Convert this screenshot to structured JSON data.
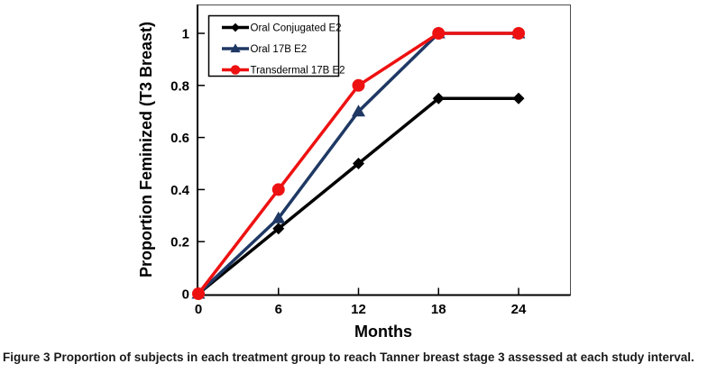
{
  "figure": {
    "caption_label": "Figure 3",
    "caption_text": "Proportion of subjects in each treatment group to reach Tanner breast stage 3 assessed at each study interval."
  },
  "chart_data": {
    "type": "line",
    "title": "",
    "xlabel": "Months",
    "ylabel": "Proportion Feminized (T3 Breast)",
    "x": [
      0,
      6,
      12,
      18,
      24
    ],
    "xtick_labels": [
      "0",
      "6",
      "12",
      "18",
      "24"
    ],
    "ytick_values": [
      0,
      0.2,
      0.4,
      0.6,
      0.8,
      1
    ],
    "ytick_labels": [
      "0",
      "0.2",
      "0.4",
      "0.6",
      "0.8",
      "1"
    ],
    "xlim": [
      0,
      28
    ],
    "ylim": [
      0,
      1.1
    ],
    "grid": false,
    "legend_position": "top-left-inside",
    "frame_color": "#4d4d4d",
    "axis_color": "#000000",
    "series": [
      {
        "name": "Oral Conjugated E2",
        "color": "#000000",
        "marker": "diamond",
        "values": [
          0,
          0.25,
          0.5,
          0.75,
          0.75
        ]
      },
      {
        "name": "Oral 17B E2",
        "color": "#1f3864",
        "marker": "triangle",
        "values": [
          0,
          0.29,
          0.7,
          1,
          1
        ]
      },
      {
        "name": "Transdermal 17B E2",
        "color": "#ee1111",
        "marker": "circle",
        "values": [
          0,
          0.4,
          0.8,
          1,
          1
        ]
      }
    ]
  }
}
